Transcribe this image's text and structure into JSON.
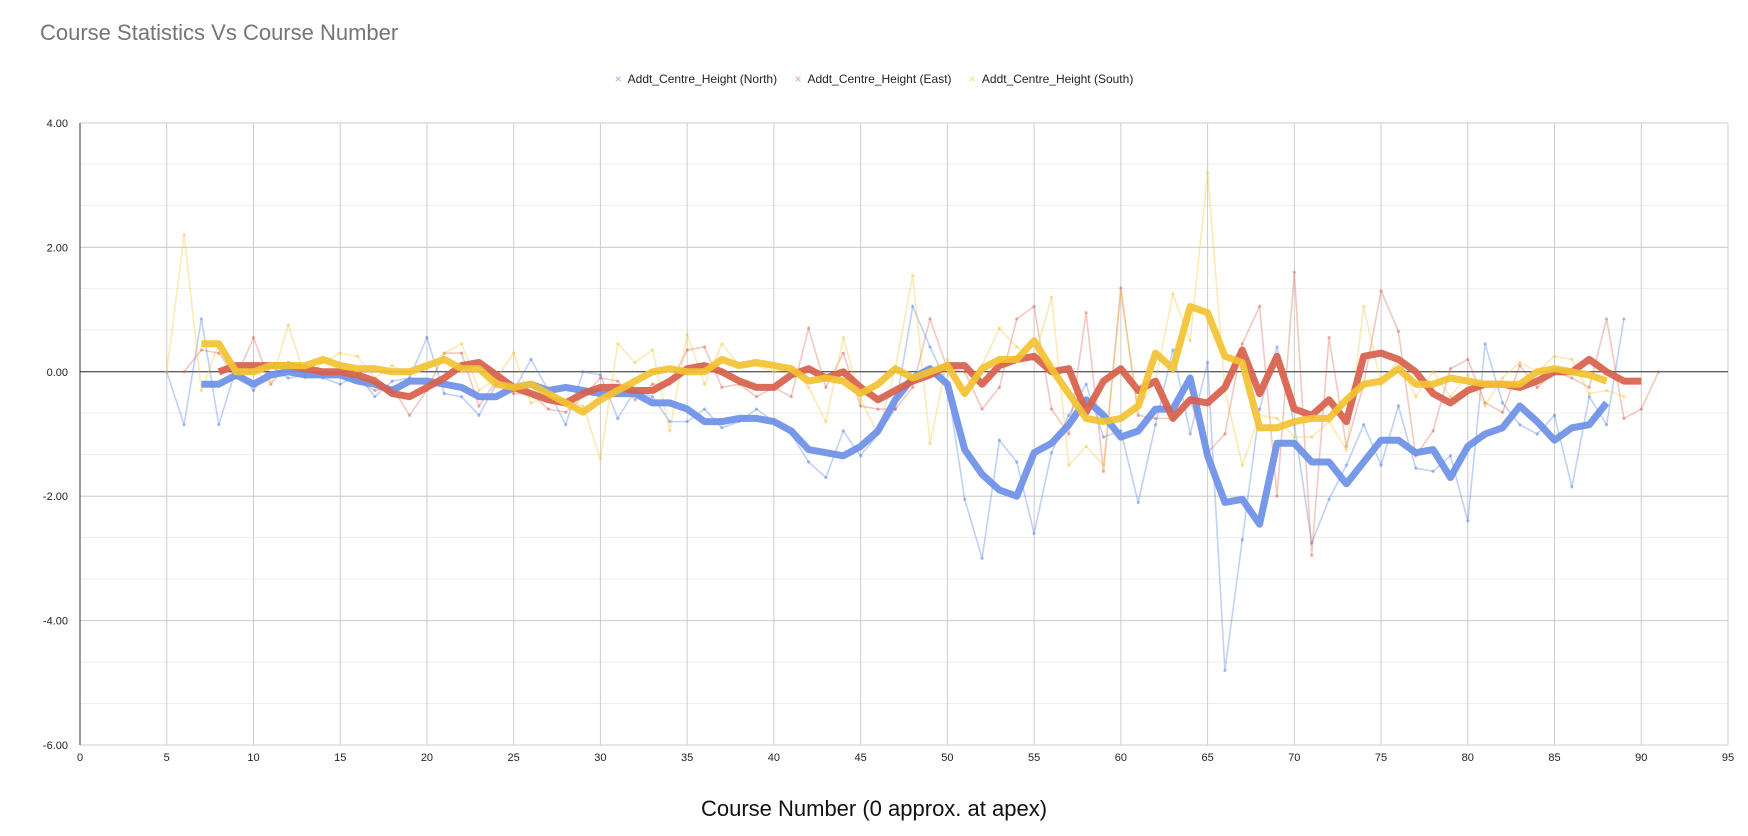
{
  "chart_data": {
    "type": "line",
    "title": "Course Statistics Vs Course Number",
    "xlabel": "Course Number (0 approx. at apex)",
    "ylabel": "",
    "xlim": [
      0,
      95
    ],
    "ylim": [
      -6,
      4
    ],
    "x_ticks": [
      "0",
      "5",
      "10",
      "15",
      "20",
      "25",
      "30",
      "35",
      "40",
      "45",
      "50",
      "55",
      "60",
      "65",
      "70",
      "75",
      "80",
      "85",
      "90",
      "95"
    ],
    "y_ticks": [
      "4.00",
      "2.00",
      "0.00",
      "-2.00",
      "-4.00",
      "-6.00"
    ],
    "grid": true,
    "legend_position": "top",
    "series": [
      {
        "name": "Addt_Centre_Height (North)",
        "color": "#4a7be8",
        "x": [
          5,
          6,
          7,
          8,
          9,
          10,
          11,
          12,
          13,
          14,
          15,
          16,
          17,
          18,
          19,
          20,
          21,
          22,
          23,
          24,
          25,
          26,
          27,
          28,
          29,
          30,
          31,
          32,
          33,
          34,
          35,
          36,
          37,
          38,
          39,
          40,
          41,
          42,
          43,
          44,
          45,
          46,
          47,
          48,
          49,
          50,
          51,
          52,
          53,
          54,
          55,
          56,
          57,
          58,
          59,
          60,
          61,
          62,
          63,
          64,
          65,
          66,
          67,
          68,
          69,
          70,
          71,
          72,
          73,
          74,
          75,
          76,
          77,
          78,
          79,
          80,
          81,
          82,
          83,
          84,
          85,
          86,
          87,
          88,
          89
        ],
        "values": [
          0.0,
          -0.85,
          0.85,
          -0.85,
          0.05,
          -0.3,
          0.1,
          -0.1,
          -0.05,
          -0.1,
          -0.2,
          -0.05,
          -0.4,
          -0.15,
          -0.1,
          0.55,
          -0.35,
          -0.4,
          -0.7,
          -0.2,
          -0.3,
          0.2,
          -0.3,
          -0.85,
          0.0,
          -0.05,
          -0.75,
          -0.3,
          -0.4,
          -0.8,
          -0.8,
          -0.6,
          -0.9,
          -0.8,
          -0.6,
          -0.8,
          -1.0,
          -1.45,
          -1.7,
          -0.95,
          -1.35,
          -1.0,
          -0.6,
          1.05,
          0.4,
          -0.2,
          -2.05,
          -3.0,
          -1.1,
          -1.45,
          -2.6,
          -1.3,
          -0.7,
          -0.2,
          -1.05,
          -0.95,
          -2.1,
          -0.85,
          0.35,
          -1.0,
          0.15,
          -4.8,
          -2.7,
          -0.6,
          0.4,
          -0.85,
          -2.75,
          -2.05,
          -1.5,
          -0.85,
          -1.5,
          -0.55,
          -1.55,
          -1.6,
          -1.35,
          -2.4,
          0.45,
          -0.5,
          -0.85,
          -1.0,
          -0.7,
          -1.85,
          -0.4,
          -0.85,
          0.85
        ]
      },
      {
        "name": "Addt_Centre_Height (East)",
        "color": "#d9604c",
        "x": [
          6,
          7,
          8,
          9,
          10,
          11,
          12,
          13,
          14,
          15,
          16,
          17,
          18,
          19,
          20,
          21,
          22,
          23,
          24,
          25,
          26,
          27,
          28,
          29,
          30,
          31,
          32,
          33,
          34,
          35,
          36,
          37,
          38,
          39,
          40,
          41,
          42,
          43,
          44,
          45,
          46,
          47,
          48,
          49,
          50,
          51,
          52,
          53,
          54,
          55,
          56,
          57,
          58,
          59,
          60,
          61,
          62,
          63,
          64,
          65,
          66,
          67,
          68,
          69,
          70,
          71,
          72,
          73,
          74,
          75,
          76,
          77,
          78,
          79,
          80,
          81,
          82,
          83,
          84,
          85,
          86,
          87,
          88,
          89,
          90,
          91
        ],
        "values": [
          0.0,
          0.35,
          0.3,
          -0.1,
          0.55,
          -0.2,
          0.15,
          0.1,
          -0.05,
          0.0,
          -0.15,
          -0.3,
          -0.25,
          -0.7,
          -0.3,
          0.3,
          0.3,
          -0.55,
          -0.15,
          -0.35,
          -0.35,
          -0.6,
          -0.65,
          -0.4,
          -0.1,
          -0.15,
          -0.45,
          -0.2,
          -0.2,
          0.35,
          0.4,
          -0.25,
          -0.2,
          -0.4,
          -0.25,
          -0.4,
          0.7,
          -0.25,
          0.3,
          -0.55,
          -0.6,
          -0.6,
          -0.25,
          0.85,
          0.05,
          0.0,
          -0.6,
          -0.25,
          0.85,
          1.05,
          -0.6,
          -1.0,
          0.95,
          -1.6,
          1.35,
          -0.7,
          -0.75,
          -0.75,
          -0.45,
          -1.3,
          -1.0,
          0.45,
          1.05,
          -2.0,
          1.6,
          -2.95,
          0.55,
          -1.2,
          -0.2,
          1.3,
          0.65,
          -1.35,
          -0.95,
          0.05,
          0.2,
          -0.5,
          -0.65,
          0.1,
          -0.25,
          0.0,
          -0.1,
          -0.25,
          0.85,
          -0.75,
          -0.6,
          0.0
        ]
      },
      {
        "name": "Addt_Centre_Height (South)",
        "color": "#f2c231",
        "x": [
          5,
          6,
          7,
          8,
          9,
          10,
          11,
          12,
          13,
          14,
          15,
          16,
          17,
          18,
          19,
          20,
          21,
          22,
          23,
          24,
          25,
          26,
          27,
          28,
          29,
          30,
          31,
          32,
          33,
          34,
          35,
          36,
          37,
          38,
          39,
          40,
          41,
          42,
          43,
          44,
          45,
          46,
          47,
          48,
          49,
          50,
          51,
          52,
          53,
          54,
          55,
          56,
          57,
          58,
          59,
          60,
          61,
          62,
          63,
          64,
          65,
          66,
          67,
          68,
          69,
          70,
          71,
          72,
          73,
          74,
          75,
          76,
          77,
          78,
          79,
          80,
          81,
          82,
          83,
          84,
          85,
          86,
          87,
          88,
          89
        ],
        "values": [
          0.0,
          2.2,
          -0.3,
          0.45,
          -0.1,
          0.05,
          -0.2,
          0.75,
          -0.1,
          0.15,
          0.3,
          0.25,
          -0.1,
          0.1,
          -0.05,
          0.05,
          0.3,
          0.45,
          -0.3,
          -0.1,
          0.3,
          -0.5,
          -0.4,
          -0.45,
          -0.55,
          -1.4,
          0.45,
          0.15,
          0.35,
          -0.95,
          0.6,
          -0.2,
          0.45,
          0.1,
          0.1,
          0.0,
          0.05,
          -0.25,
          -0.8,
          0.55,
          -0.45,
          -1.0,
          0.05,
          1.55,
          -1.15,
          0.2,
          -0.35,
          0.1,
          0.7,
          0.4,
          0.2,
          1.2,
          -1.5,
          -1.2,
          -1.5,
          1.25,
          -0.6,
          -0.15,
          1.25,
          0.5,
          3.2,
          -0.3,
          -1.5,
          -0.7,
          -0.75,
          -1.05,
          -1.05,
          -0.8,
          -1.25,
          1.05,
          -0.2,
          0.2,
          -0.4,
          0.0,
          -0.4,
          -0.05,
          -0.55,
          -0.1,
          0.15,
          0.0,
          0.25,
          0.2,
          -0.35,
          -0.3,
          -0.4
        ]
      }
    ],
    "trendlines": [
      {
        "series": "Addt_Centre_Height (North)",
        "color": "#6d8fe8",
        "x": [
          7,
          8,
          9,
          10,
          11,
          12,
          13,
          14,
          15,
          16,
          17,
          18,
          19,
          20,
          21,
          22,
          23,
          24,
          25,
          26,
          27,
          28,
          29,
          30,
          31,
          32,
          33,
          34,
          35,
          36,
          37,
          38,
          39,
          40,
          41,
          42,
          43,
          44,
          45,
          46,
          47,
          48,
          49,
          50,
          51,
          52,
          53,
          54,
          55,
          56,
          57,
          58,
          59,
          60,
          61,
          62,
          63,
          64,
          65,
          66,
          67,
          68,
          69,
          70,
          71,
          72,
          73,
          74,
          75,
          76,
          77,
          78,
          79,
          80,
          81,
          82,
          83,
          84,
          85,
          86,
          87,
          88
        ],
        "values": [
          -0.2,
          -0.2,
          -0.05,
          -0.2,
          -0.05,
          0.0,
          -0.05,
          -0.05,
          -0.05,
          -0.15,
          -0.2,
          -0.3,
          -0.15,
          -0.15,
          -0.2,
          -0.25,
          -0.4,
          -0.4,
          -0.25,
          -0.2,
          -0.3,
          -0.25,
          -0.3,
          -0.35,
          -0.35,
          -0.35,
          -0.5,
          -0.5,
          -0.6,
          -0.8,
          -0.8,
          -0.75,
          -0.75,
          -0.8,
          -0.95,
          -1.25,
          -1.3,
          -1.35,
          -1.2,
          -0.95,
          -0.45,
          -0.1,
          0.05,
          -0.2,
          -1.25,
          -1.65,
          -1.9,
          -2.0,
          -1.3,
          -1.15,
          -0.85,
          -0.45,
          -0.7,
          -1.05,
          -0.95,
          -0.6,
          -0.6,
          -0.1,
          -1.35,
          -2.1,
          -2.05,
          -2.45,
          -1.15,
          -1.15,
          -1.45,
          -1.45,
          -1.8,
          -1.45,
          -1.1,
          -1.1,
          -1.3,
          -1.25,
          -1.7,
          -1.2,
          -1.0,
          -0.9,
          -0.55,
          -0.8,
          -1.1,
          -0.9,
          -0.85,
          -0.5
        ]
      },
      {
        "series": "Addt_Centre_Height (East)",
        "color": "#d9604c",
        "x": [
          8,
          9,
          10,
          11,
          12,
          13,
          14,
          15,
          16,
          17,
          18,
          19,
          20,
          21,
          22,
          23,
          24,
          25,
          26,
          27,
          28,
          29,
          30,
          31,
          32,
          33,
          34,
          35,
          36,
          37,
          38,
          39,
          40,
          41,
          42,
          43,
          44,
          45,
          46,
          47,
          48,
          49,
          50,
          51,
          52,
          53,
          54,
          55,
          56,
          57,
          58,
          59,
          60,
          61,
          62,
          63,
          64,
          65,
          66,
          67,
          68,
          69,
          70,
          71,
          72,
          73,
          74,
          75,
          76,
          77,
          78,
          79,
          80,
          81,
          82,
          83,
          84,
          85,
          86,
          87,
          88,
          89,
          90
        ],
        "values": [
          0.0,
          0.1,
          0.1,
          0.1,
          0.1,
          0.05,
          0.0,
          0.0,
          -0.05,
          -0.15,
          -0.35,
          -0.4,
          -0.25,
          -0.1,
          0.1,
          0.15,
          -0.05,
          -0.25,
          -0.35,
          -0.45,
          -0.5,
          -0.35,
          -0.25,
          -0.25,
          -0.3,
          -0.3,
          -0.15,
          0.05,
          0.1,
          0.0,
          -0.15,
          -0.25,
          -0.25,
          -0.05,
          0.05,
          -0.1,
          0.0,
          -0.25,
          -0.45,
          -0.3,
          -0.15,
          -0.05,
          0.1,
          0.1,
          -0.2,
          0.1,
          0.2,
          0.25,
          0.0,
          0.05,
          -0.65,
          -0.15,
          0.05,
          -0.3,
          -0.15,
          -0.75,
          -0.45,
          -0.5,
          -0.25,
          0.35,
          -0.35,
          0.25,
          -0.6,
          -0.7,
          -0.45,
          -0.8,
          0.25,
          0.3,
          0.2,
          0.0,
          -0.35,
          -0.5,
          -0.3,
          -0.2,
          -0.2,
          -0.25,
          -0.15,
          0.0,
          0.0,
          0.2,
          0.0,
          -0.15,
          -0.15
        ]
      },
      {
        "series": "Addt_Centre_Height (South)",
        "color": "#f2c231",
        "x": [
          7,
          8,
          9,
          10,
          11,
          12,
          13,
          14,
          15,
          16,
          17,
          18,
          19,
          20,
          21,
          22,
          23,
          24,
          25,
          26,
          27,
          28,
          29,
          30,
          31,
          32,
          33,
          34,
          35,
          36,
          37,
          38,
          39,
          40,
          41,
          42,
          43,
          44,
          45,
          46,
          47,
          48,
          49,
          50,
          51,
          52,
          53,
          54,
          55,
          56,
          57,
          58,
          59,
          60,
          61,
          62,
          63,
          64,
          65,
          66,
          67,
          68,
          69,
          70,
          71,
          72,
          73,
          74,
          75,
          76,
          77,
          78,
          79,
          80,
          81,
          82,
          83,
          84,
          85,
          86,
          87,
          88
        ],
        "values": [
          0.45,
          0.45,
          0.0,
          0.0,
          0.1,
          0.1,
          0.1,
          0.2,
          0.1,
          0.05,
          0.05,
          0.0,
          0.0,
          0.1,
          0.2,
          0.05,
          0.05,
          -0.2,
          -0.25,
          -0.2,
          -0.35,
          -0.5,
          -0.65,
          -0.45,
          -0.3,
          -0.15,
          0.0,
          0.05,
          0.0,
          0.0,
          0.2,
          0.1,
          0.15,
          0.1,
          0.05,
          -0.15,
          -0.1,
          -0.15,
          -0.35,
          -0.2,
          0.05,
          -0.1,
          0.0,
          0.1,
          -0.35,
          0.05,
          0.2,
          0.2,
          0.5,
          0.05,
          -0.35,
          -0.75,
          -0.8,
          -0.75,
          -0.55,
          0.3,
          0.05,
          1.05,
          0.95,
          0.25,
          0.15,
          -0.9,
          -0.9,
          -0.8,
          -0.75,
          -0.75,
          -0.45,
          -0.2,
          -0.15,
          0.05,
          -0.2,
          -0.2,
          -0.1,
          -0.15,
          -0.2,
          -0.2,
          -0.2,
          0.0,
          0.05,
          0.0,
          -0.05,
          -0.15
        ]
      }
    ]
  }
}
